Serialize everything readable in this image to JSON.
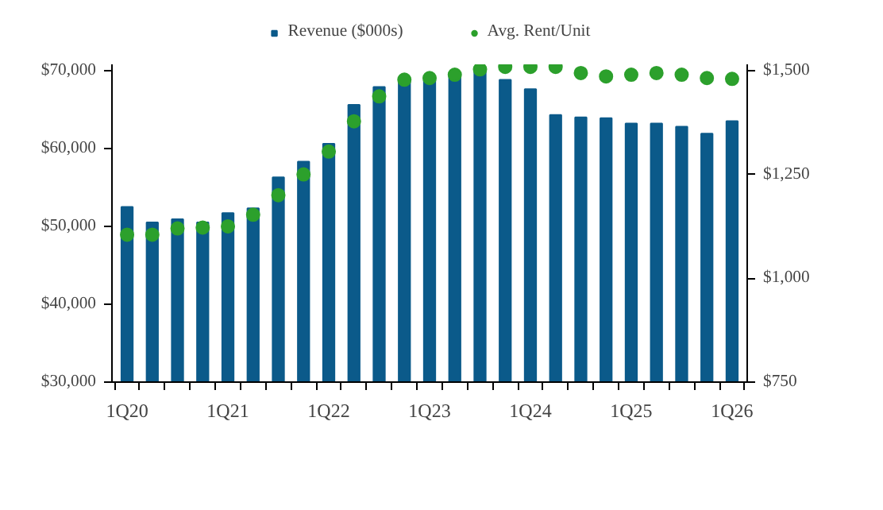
{
  "chart_data": {
    "type": "bar",
    "categories": [
      "1Q20",
      null,
      null,
      null,
      "1Q21",
      null,
      null,
      null,
      "1Q22",
      null,
      null,
      null,
      "1Q23",
      null,
      null,
      null,
      "1Q24",
      null,
      null,
      null,
      "1Q25",
      null,
      null,
      null,
      "1Q26"
    ],
    "series": [
      {
        "name": "Revenue ($000s)",
        "color": "#0b5a8a",
        "values": [
          52500,
          50500,
          50900,
          50500,
          51700,
          52300,
          56300,
          58300,
          60600,
          65600,
          67900,
          68900,
          69000,
          69600,
          69900,
          68800,
          67600,
          64300,
          64000,
          63900,
          63200,
          63200,
          62800,
          61900,
          63500
        ]
      },
      {
        "name": "Avg. Rent/Unit",
        "type": "scatter",
        "axis": "y2",
        "color": "#2ca02c",
        "values": [
          1105,
          1105,
          1120,
          1122,
          1125,
          1153,
          1200,
          1250,
          1305,
          1378,
          1438,
          1478,
          1482,
          1490,
          1503,
          1509,
          1509,
          1509,
          1494,
          1486,
          1490,
          1494,
          1490,
          1482,
          1480
        ]
      }
    ],
    "ylim": [
      30000,
      70800
    ],
    "yticks": [
      {
        "value": 30000,
        "label": "$30,000"
      },
      {
        "value": 40000,
        "label": "$40,000"
      },
      {
        "value": 50000,
        "label": "$50,000"
      },
      {
        "value": 60000,
        "label": "$60,000"
      },
      {
        "value": 70000,
        "label": "$70,000"
      }
    ],
    "y2lim": [
      750,
      1515
    ],
    "y2ticks": [
      {
        "value": 750,
        "label": "$750"
      },
      {
        "value": 1000,
        "label": "$1,000"
      },
      {
        "value": 1250,
        "label": "$1,250"
      },
      {
        "value": 1500,
        "label": "$1,500"
      }
    ],
    "marker": "circle",
    "legend": "top",
    "grid": false
  }
}
